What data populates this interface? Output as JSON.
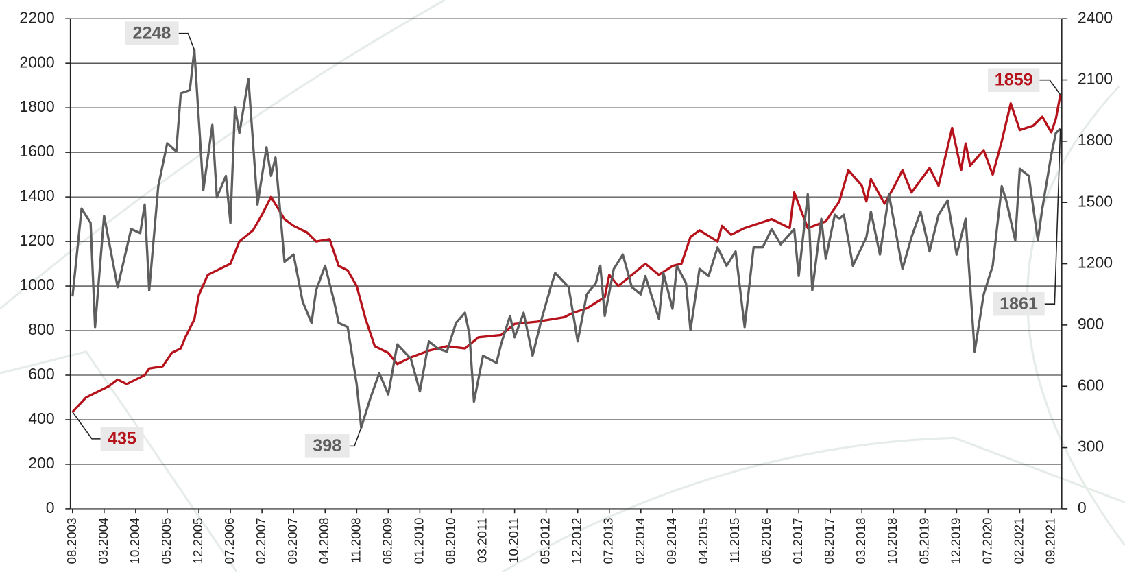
{
  "chart_data": {
    "type": "line",
    "xticks": [
      "08.2003",
      "03.2004",
      "10.2004",
      "05.2005",
      "12.2005",
      "07.2006",
      "02.2007",
      "09.2007",
      "04.2008",
      "11.2008",
      "06.2009",
      "01.2010",
      "08.2010",
      "03.2011",
      "10.2011",
      "05.2012",
      "12.2012",
      "07.2013",
      "02.2014",
      "09.2014",
      "04.2015",
      "11.2015",
      "06.2016",
      "01.2017",
      "08.2017",
      "03.2018",
      "10.2018",
      "05.2019",
      "12.2019",
      "07.2020",
      "02.2021",
      "09.2021"
    ],
    "xlim": [
      "08.2003",
      "11.2021"
    ],
    "ylim": [
      0,
      2200
    ],
    "yticks": [
      0,
      200,
      400,
      600,
      800,
      1000,
      1200,
      1400,
      1600,
      1800,
      2000,
      2200
    ],
    "y2lim": [
      0,
      2400
    ],
    "y2ticks": [
      0,
      300,
      600,
      900,
      1200,
      1500,
      1800,
      2100,
      2400
    ],
    "grid": true,
    "series": [
      {
        "color": "#b5121b",
        "axis": "y",
        "x": [
          "08.2003",
          "11.2003",
          "04.2004",
          "06.2004",
          "08.2004",
          "12.2004",
          "01.2005",
          "04.2005",
          "06.2005",
          "08.2005",
          "09.2005",
          "11.2005",
          "12.2005",
          "02.2006",
          "05.2006",
          "07.2006",
          "09.2006",
          "12.2006",
          "02.2007",
          "04.2007",
          "07.2007",
          "09.2007",
          "12.2007",
          "02.2008",
          "05.2008",
          "07.2008",
          "09.2008",
          "11.2008",
          "01.2009",
          "03.2009",
          "06.2009",
          "08.2009",
          "11.2009",
          "03.2010",
          "07.2010",
          "11.2010",
          "02.2011",
          "07.2011",
          "10.2011",
          "03.2012",
          "06.2012",
          "09.2012",
          "11.2012",
          "02.2013",
          "06.2013",
          "07.2013",
          "09.2013",
          "12.2013",
          "03.2014",
          "06.2014",
          "09.2014",
          "11.2014",
          "01.2015",
          "03.2015",
          "07.2015",
          "08.2015",
          "10.2015",
          "01.2016",
          "07.2016",
          "11.2016",
          "12.2016",
          "03.2017",
          "07.2017",
          "10.2017",
          "12.2017",
          "03.2018",
          "04.2018",
          "05.2018",
          "08.2018",
          "10.2018",
          "12.2018",
          "02.2019",
          "06.2019",
          "08.2019",
          "11.2019",
          "01.2020",
          "02.2020",
          "03.2020",
          "06.2020",
          "08.2020",
          "10.2020",
          "12.2020",
          "02.2021",
          "05.2021",
          "07.2021",
          "09.2021",
          "10.2021",
          "11.2021"
        ],
        "values": [
          435,
          500,
          550,
          580,
          560,
          600,
          630,
          640,
          700,
          720,
          770,
          850,
          960,
          1050,
          1080,
          1100,
          1200,
          1250,
          1320,
          1400,
          1300,
          1270,
          1240,
          1200,
          1210,
          1090,
          1070,
          1000,
          850,
          730,
          700,
          650,
          680,
          710,
          730,
          720,
          770,
          780,
          830,
          840,
          850,
          860,
          880,
          900,
          950,
          1050,
          1000,
          1050,
          1100,
          1050,
          1090,
          1100,
          1220,
          1250,
          1200,
          1270,
          1230,
          1260,
          1300,
          1260,
          1420,
          1260,
          1290,
          1380,
          1520,
          1450,
          1380,
          1480,
          1370,
          1440,
          1520,
          1420,
          1530,
          1450,
          1710,
          1520,
          1640,
          1540,
          1610,
          1500,
          1650,
          1820,
          1700,
          1720,
          1760,
          1690,
          1750,
          1859
        ]
      },
      {
        "color": "#5e5e5e",
        "axis": "y2",
        "x": [
          "08.2003",
          "10.2003",
          "12.2003",
          "01.2004",
          "03.2004",
          "06.2004",
          "09.2004",
          "11.2004",
          "12.2004",
          "01.2005",
          "03.2005",
          "05.2005",
          "07.2005",
          "08.2005",
          "10.2005",
          "11.2005",
          "01.2006",
          "03.2006",
          "04.2006",
          "06.2006",
          "07.2006",
          "08.2006",
          "09.2006",
          "11.2006",
          "01.2007",
          "03.2007",
          "04.2007",
          "05.2007",
          "07.2007",
          "09.2007",
          "11.2007",
          "01.2008",
          "02.2008",
          "04.2008",
          "06.2008",
          "07.2008",
          "09.2008",
          "11.2008",
          "12.2008",
          "02.2009",
          "04.2009",
          "06.2009",
          "08.2009",
          "11.2009",
          "01.2010",
          "03.2010",
          "05.2010",
          "07.2010",
          "09.2010",
          "11.2010",
          "12.2010",
          "01.2011",
          "03.2011",
          "06.2011",
          "07.2011",
          "09.2011",
          "10.2011",
          "12.2011",
          "02.2012",
          "04.2012",
          "06.2012",
          "07.2012",
          "10.2012",
          "12.2012",
          "02.2013",
          "04.2013",
          "05.2013",
          "06.2013",
          "08.2013",
          "10.2013",
          "12.2013",
          "02.2014",
          "03.2014",
          "06.2014",
          "07.2014",
          "09.2014",
          "10.2014",
          "12.2014",
          "01.2015",
          "03.2015",
          "05.2015",
          "07.2015",
          "09.2015",
          "11.2015",
          "01.2016",
          "03.2016",
          "05.2016",
          "07.2016",
          "09.2016",
          "12.2016",
          "01.2017",
          "03.2017",
          "04.2017",
          "06.2017",
          "07.2017",
          "09.2017",
          "10.2017",
          "11.2017",
          "01.2018",
          "04.2018",
          "05.2018",
          "07.2018",
          "09.2018",
          "12.2018",
          "02.2019",
          "04.2019",
          "06.2019",
          "08.2019",
          "10.2019",
          "12.2019",
          "02.2020",
          "04.2020",
          "06.2020",
          "08.2020",
          "10.2020",
          "11.2020",
          "01.2021",
          "02.2021",
          "04.2021",
          "06.2021",
          "07.2021",
          "09.2021",
          "10.2021",
          "11.2021"
        ],
        "values": [
          1040,
          1470,
          1400,
          890,
          1435,
          1085,
          1370,
          1350,
          1490,
          1070,
          1580,
          1790,
          1750,
          2035,
          2050,
          2248,
          1560,
          1880,
          1525,
          1630,
          1400,
          1965,
          1840,
          2105,
          1490,
          1770,
          1630,
          1720,
          1210,
          1245,
          1015,
          910,
          1070,
          1190,
          1015,
          910,
          890,
          610,
          398,
          540,
          665,
          560,
          805,
          735,
          575,
          820,
          785,
          770,
          910,
          960,
          855,
          525,
          750,
          715,
          805,
          945,
          840,
          960,
          750,
          930,
          1085,
          1155,
          1085,
          820,
          1050,
          1105,
          1190,
          945,
          1175,
          1245,
          1085,
          1050,
          1140,
          930,
          1155,
          980,
          1190,
          1105,
          875,
          1175,
          1140,
          1280,
          1190,
          1260,
          890,
          1280,
          1280,
          1370,
          1295,
          1370,
          1140,
          1540,
          1070,
          1420,
          1225,
          1440,
          1420,
          1440,
          1190,
          1330,
          1455,
          1245,
          1540,
          1175,
          1330,
          1455,
          1260,
          1440,
          1510,
          1245,
          1420,
          770,
          1050,
          1190,
          1580,
          1510,
          1315,
          1665,
          1630,
          1315,
          1470,
          1735,
          1840,
          1861
        ]
      }
    ]
  }
}
